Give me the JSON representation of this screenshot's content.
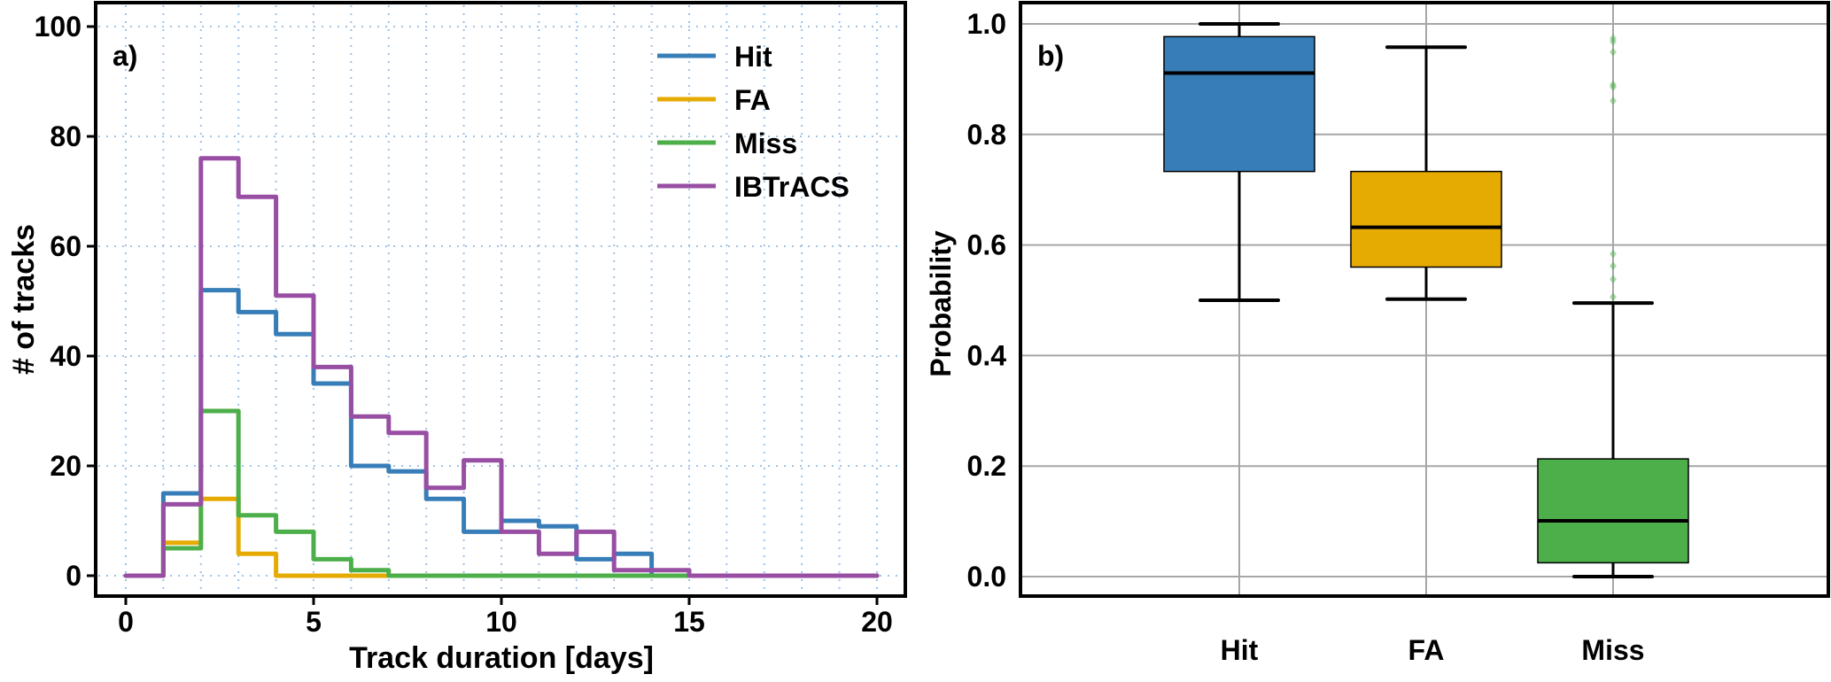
{
  "chart_data": [
    {
      "type": "line",
      "subtype": "step-histogram",
      "panel_label": "a)",
      "xlabel": "Track duration [days]",
      "ylabel": "# of tracks",
      "xlim": [
        0,
        20
      ],
      "ylim": [
        0,
        100
      ],
      "xticks": [
        "0",
        "5",
        "10",
        "15",
        "20"
      ],
      "yticks": [
        "0",
        "20",
        "40",
        "60",
        "80",
        "100"
      ],
      "grid": true,
      "legend_position": "top-right",
      "bin_edges": [
        0,
        1,
        2,
        3,
        4,
        5,
        6,
        7,
        8,
        9,
        10,
        11,
        12,
        13,
        14,
        15,
        16,
        17,
        18,
        19,
        20
      ],
      "series": [
        {
          "name": "Hit",
          "color": "#377eb8",
          "values": [
            0,
            15,
            52,
            48,
            44,
            35,
            20,
            19,
            14,
            8,
            10,
            9,
            3,
            4,
            0,
            0,
            0,
            0,
            0,
            0
          ]
        },
        {
          "name": "FA",
          "color": "#e6ab02",
          "values": [
            0,
            6,
            14,
            4,
            0,
            0,
            0,
            0,
            0,
            0,
            0,
            0,
            0,
            0,
            0,
            0,
            0,
            0,
            0,
            0
          ]
        },
        {
          "name": "Miss",
          "color": "#4daf4a",
          "values": [
            0,
            5,
            30,
            11,
            8,
            3,
            1,
            0,
            0,
            0,
            0,
            0,
            0,
            0,
            0,
            0,
            0,
            0,
            0,
            0
          ]
        },
        {
          "name": "IBTrACS",
          "color": "#984ea3",
          "values": [
            0,
            13,
            76,
            69,
            51,
            38,
            29,
            26,
            16,
            21,
            8,
            4,
            8,
            1,
            1,
            0,
            0,
            0,
            0,
            0
          ]
        }
      ]
    },
    {
      "type": "box",
      "panel_label": "b)",
      "xlabel": "",
      "ylabel": "Probability",
      "ylim": [
        0,
        1.0
      ],
      "yticks": [
        "0.0",
        "0.2",
        "0.4",
        "0.6",
        "0.8",
        "1.0"
      ],
      "grid": true,
      "categories": [
        "Hit",
        "FA",
        "Miss"
      ],
      "boxes": [
        {
          "category": "Hit",
          "color": "#377eb8",
          "whisker_low": 0.5,
          "q1": 0.733,
          "median": 0.911,
          "q3": 0.977,
          "whisker_high": 1.0,
          "outliers": []
        },
        {
          "category": "FA",
          "color": "#e6ab02",
          "whisker_low": 0.502,
          "q1": 0.56,
          "median": 0.632,
          "q3": 0.733,
          "whisker_high": 0.958,
          "outliers": []
        },
        {
          "category": "Miss",
          "color": "#4daf4a",
          "whisker_low": 0.0,
          "q1": 0.025,
          "median": 0.101,
          "q3": 0.213,
          "whisker_high": 0.495,
          "outliers": [
            0.974,
            0.968,
            0.949,
            0.89,
            0.886,
            0.861,
            0.584,
            0.562,
            0.538,
            0.506
          ]
        }
      ]
    }
  ]
}
